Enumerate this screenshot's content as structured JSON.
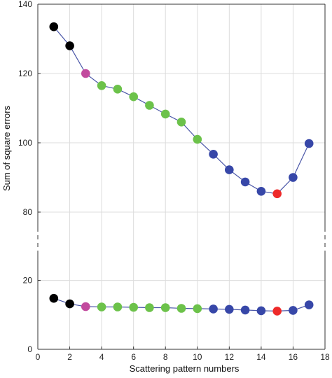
{
  "chart_data": {
    "type": "scatter",
    "title": "",
    "xlabel": "Scattering pattern numbers",
    "ylabel": "Sum of square errors",
    "xlim": [
      0,
      18
    ],
    "x_ticks": [
      "0",
      "2",
      "4",
      "6",
      "8",
      "10",
      "12",
      "14",
      "16",
      "18"
    ],
    "x_tick_values": [
      0,
      2,
      4,
      6,
      8,
      10,
      12,
      14,
      16,
      18
    ],
    "axis_break": true,
    "y_upper_panel": {
      "ylim": [
        80,
        140
      ],
      "ticks": [
        "80",
        "100",
        "120",
        "140"
      ],
      "tick_values": [
        80,
        100,
        120,
        140
      ]
    },
    "y_lower_panel": {
      "ylim": [
        0,
        25
      ],
      "ticks": [
        "0",
        "20"
      ],
      "tick_values": [
        0,
        20
      ]
    },
    "grid": true,
    "colors": {
      "line": "#4b57a8",
      "black": "#000000",
      "magenta": "#c24a9e",
      "green": "#6cc24a",
      "blue": "#3747a8",
      "red": "#ee2a2a"
    },
    "series": [
      {
        "panel": "upper",
        "x": [
          1,
          2,
          3,
          4,
          5,
          6,
          7,
          8,
          9,
          10,
          11,
          12,
          13,
          14,
          15,
          16,
          17
        ],
        "y": [
          133.5,
          128,
          120,
          116.5,
          115.5,
          113.3,
          110.8,
          108.3,
          106,
          101,
          96.7,
          92.2,
          88.7,
          86,
          85.3,
          90,
          99.8
        ],
        "point_colors": [
          "black",
          "black",
          "magenta",
          "green",
          "green",
          "green",
          "green",
          "green",
          "green",
          "green",
          "blue",
          "blue",
          "blue",
          "blue",
          "red",
          "blue",
          "blue"
        ]
      },
      {
        "panel": "lower",
        "x": [
          1,
          2,
          3,
          4,
          5,
          6,
          7,
          8,
          9,
          10,
          11,
          12,
          13,
          14,
          15,
          16,
          17
        ],
        "y": [
          14.8,
          13.2,
          12.4,
          12.3,
          12.3,
          12.2,
          12.1,
          12.1,
          11.9,
          11.8,
          11.7,
          11.6,
          11.4,
          11.2,
          11.1,
          11.3,
          12.9
        ],
        "point_colors": [
          "black",
          "black",
          "magenta",
          "green",
          "green",
          "green",
          "green",
          "green",
          "green",
          "green",
          "blue",
          "blue",
          "blue",
          "blue",
          "red",
          "blue",
          "blue"
        ]
      }
    ]
  }
}
